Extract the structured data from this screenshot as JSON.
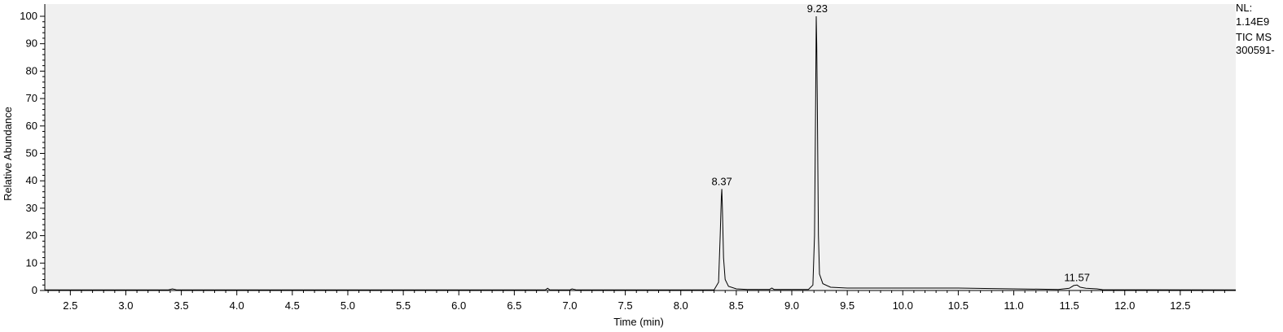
{
  "chart_data": {
    "type": "line",
    "xlabel": "Time (min)",
    "ylabel": "Relative Abundance",
    "xlim": [
      2.27,
      13.0
    ],
    "ylim": [
      0,
      100
    ],
    "x_ticks": [
      2.5,
      3.0,
      3.5,
      4.0,
      4.5,
      5.0,
      5.5,
      6.0,
      6.5,
      7.0,
      7.5,
      8.0,
      8.5,
      9.0,
      9.5,
      10.0,
      10.5,
      11.0,
      11.5,
      12.0,
      12.5
    ],
    "x_tick_labels": [
      "2.5",
      "3.0",
      "3.5",
      "4.0",
      "4.5",
      "5.0",
      "5.5",
      "6.0",
      "6.5",
      "7.0",
      "7.5",
      "8.0",
      "8.5",
      "9.0",
      "9.5",
      "10.0",
      "10.5",
      "11.0",
      "11.5",
      "12.0",
      "12.5"
    ],
    "y_ticks": [
      0,
      10,
      20,
      30,
      40,
      50,
      60,
      70,
      80,
      90,
      100
    ],
    "y_tick_labels": [
      "0",
      "10",
      "20",
      "30",
      "40",
      "50",
      "60",
      "70",
      "80",
      "90",
      "100"
    ],
    "grid": false,
    "series": [
      {
        "x": [
          2.27,
          3.38,
          3.42,
          3.46,
          6.78,
          6.8,
          6.82,
          7.0,
          7.02,
          7.06,
          8.3,
          8.34,
          8.355,
          8.365,
          8.37,
          8.375,
          8.385,
          8.4,
          8.43,
          8.5,
          8.6,
          8.8,
          8.82,
          8.84,
          9.15,
          9.19,
          9.205,
          9.215,
          9.22,
          9.225,
          9.23,
          9.235,
          9.24,
          9.25,
          9.28,
          9.35,
          9.5,
          10.0,
          10.5,
          10.8,
          11.4,
          11.5,
          11.54,
          11.57,
          11.6,
          11.65,
          11.75,
          11.8,
          13.0
        ],
        "y": [
          0.2,
          0.2,
          0.6,
          0.2,
          0.2,
          0.8,
          0.2,
          0.2,
          0.6,
          0.2,
          0.2,
          3,
          20,
          34,
          37,
          30,
          12,
          4,
          1.5,
          0.6,
          0.4,
          0.4,
          0.9,
          0.4,
          0.4,
          2,
          20,
          70,
          100,
          90,
          70,
          44,
          20,
          6,
          2.5,
          1.2,
          0.9,
          0.9,
          0.9,
          0.7,
          0.4,
          0.8,
          1.8,
          2.0,
          1.2,
          0.8,
          0.6,
          0.3,
          0.2
        ]
      }
    ],
    "peak_labels": [
      {
        "x": 8.37,
        "y": 37,
        "text": "8.37"
      },
      {
        "x": 9.23,
        "y": 100,
        "text": "9.23"
      },
      {
        "x": 11.57,
        "y": 2.0,
        "text": "11.57"
      }
    ]
  },
  "info": {
    "lines": [
      "NL:",
      "1.14E9",
      "TIC  MS",
      "300591-"
    ]
  },
  "colors": {
    "plot_background": "#f0f0f0",
    "trace": "#000000",
    "axis": "#000000"
  }
}
